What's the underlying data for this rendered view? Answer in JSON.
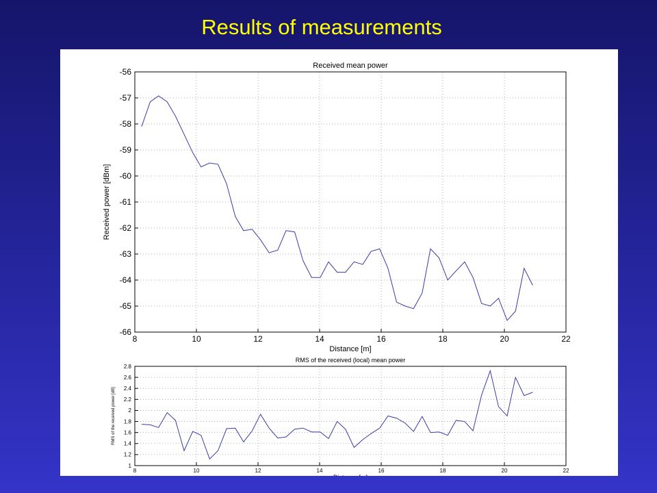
{
  "slide_title": "Results of measurements",
  "chart_data": [
    {
      "type": "line",
      "title": "Received mean power",
      "x_label": "Distance [m]",
      "y_label": "Received power [dBm]",
      "xlim": [
        8,
        22
      ],
      "xticks": [
        8,
        10,
        12,
        14,
        16,
        18,
        20,
        22
      ],
      "ylim": [
        -66,
        -56
      ],
      "yticks": [
        -66,
        -65,
        -64,
        -63,
        -62,
        -61,
        -60,
        -59,
        -58,
        -57,
        -56
      ],
      "grid": true,
      "color": "#3a3aa8",
      "x": [
        8.22,
        8.5,
        8.77,
        9.05,
        9.32,
        9.6,
        9.88,
        10.15,
        10.43,
        10.7,
        10.98,
        11.26,
        11.53,
        11.81,
        12.08,
        12.36,
        12.64,
        12.91,
        13.19,
        13.46,
        13.74,
        14.02,
        14.29,
        14.57,
        14.84,
        15.12,
        15.4,
        15.67,
        15.95,
        16.22,
        16.5,
        16.78,
        17.05,
        17.33,
        17.6,
        17.88,
        18.16,
        18.43,
        18.71,
        18.98,
        19.26,
        19.54,
        19.81,
        20.09,
        20.36,
        20.64,
        20.92
      ],
      "values": [
        -58.1,
        -57.15,
        -56.92,
        -57.15,
        -57.7,
        -58.4,
        -59.1,
        -59.65,
        -59.5,
        -59.55,
        -60.3,
        -61.55,
        -62.1,
        -62.05,
        -62.45,
        -62.95,
        -62.85,
        -62.1,
        -62.15,
        -63.25,
        -63.9,
        -63.9,
        -63.3,
        -63.7,
        -63.7,
        -63.3,
        -63.4,
        -62.9,
        -62.8,
        -63.55,
        -64.85,
        -65.0,
        -65.1,
        -64.5,
        -62.8,
        -63.15,
        -64.0,
        -63.65,
        -63.3,
        -63.9,
        -64.9,
        -65.0,
        -64.7,
        -65.55,
        -65.2,
        -63.55,
        -64.2
      ]
    },
    {
      "type": "line",
      "title": "RMS of the received (local) mean power",
      "x_label": "Distance [m]",
      "y_label": "RMS of the received power [dB]",
      "xlim": [
        8,
        22
      ],
      "xticks": [
        8,
        10,
        12,
        14,
        16,
        18,
        20,
        22
      ],
      "ylim": [
        1,
        2.8
      ],
      "yticks": [
        1,
        1.2,
        1.4,
        1.6,
        1.8,
        2,
        2.2,
        2.4,
        2.6,
        2.8
      ],
      "grid": true,
      "color": "#3a3aa8",
      "x": [
        8.22,
        8.5,
        8.77,
        9.05,
        9.32,
        9.6,
        9.88,
        10.15,
        10.43,
        10.7,
        10.98,
        11.26,
        11.53,
        11.81,
        12.08,
        12.36,
        12.64,
        12.91,
        13.19,
        13.46,
        13.74,
        14.02,
        14.29,
        14.57,
        14.84,
        15.12,
        15.4,
        15.67,
        15.95,
        16.22,
        16.5,
        16.78,
        17.05,
        17.33,
        17.6,
        17.88,
        18.16,
        18.43,
        18.71,
        18.98,
        19.26,
        19.54,
        19.81,
        20.09,
        20.36,
        20.64,
        20.92
      ],
      "values": [
        1.75,
        1.74,
        1.69,
        1.96,
        1.82,
        1.27,
        1.62,
        1.55,
        1.12,
        1.27,
        1.67,
        1.68,
        1.43,
        1.63,
        1.93,
        1.68,
        1.5,
        1.52,
        1.66,
        1.68,
        1.61,
        1.61,
        1.49,
        1.8,
        1.66,
        1.33,
        1.47,
        1.58,
        1.68,
        1.9,
        1.86,
        1.77,
        1.62,
        1.89,
        1.6,
        1.61,
        1.55,
        1.82,
        1.8,
        1.63,
        2.28,
        2.72,
        2.07,
        1.9,
        2.6,
        2.27,
        2.33
      ]
    }
  ]
}
